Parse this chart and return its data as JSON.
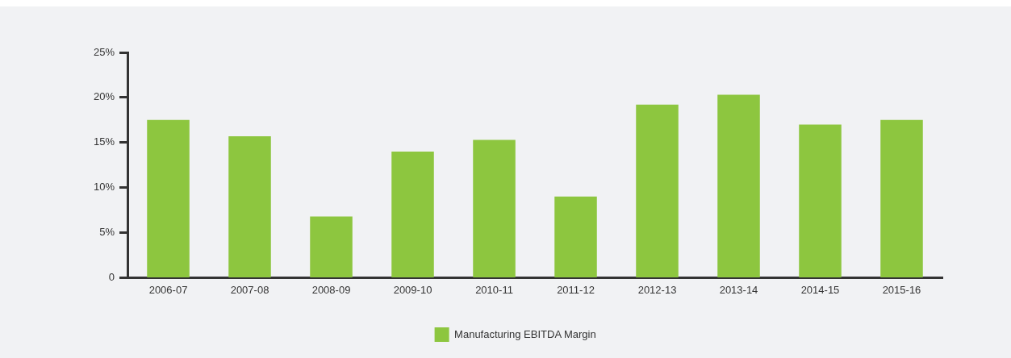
{
  "chart_data": {
    "type": "bar",
    "categories": [
      "2006-07",
      "2007-08",
      "2008-09",
      "2009-10",
      "2010-11",
      "2011-12",
      "2012-13",
      "2013-14",
      "2014-15",
      "2015-16"
    ],
    "series": [
      {
        "name": "Manufacturing EBITDA Margin",
        "color": "#8dc63f",
        "values": [
          17.5,
          15.7,
          6.8,
          14.0,
          15.3,
          9.0,
          19.2,
          20.3,
          17.0,
          17.5
        ]
      }
    ],
    "ylim": [
      0,
      25
    ],
    "yticks": [
      0,
      {
        "value": 5,
        "label": "5%"
      },
      {
        "value": 10,
        "label": "10%"
      },
      {
        "value": 15,
        "label": "15%"
      },
      {
        "value": 20,
        "label": "20%"
      },
      {
        "value": 25,
        "label": "25%"
      }
    ],
    "grid": false,
    "legend": "bottom"
  }
}
